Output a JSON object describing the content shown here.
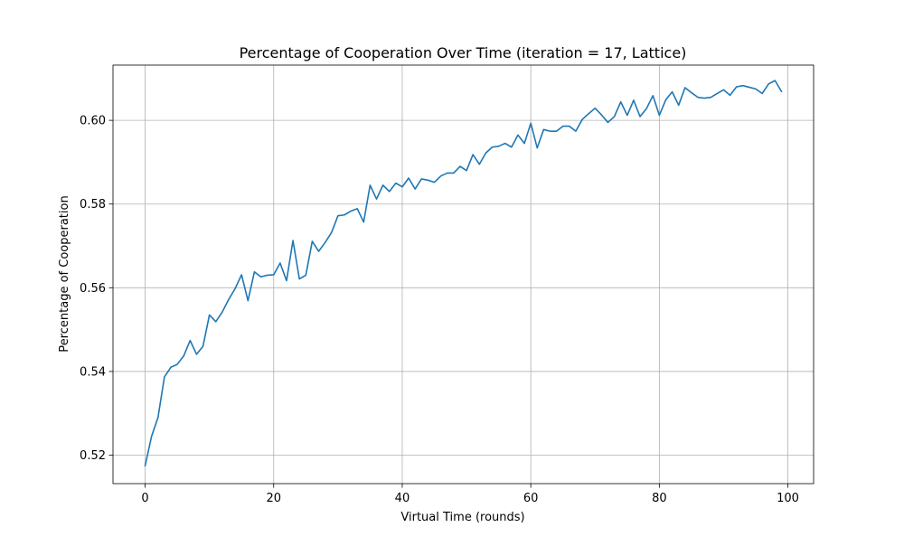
{
  "chart_data": {
    "type": "line",
    "title": "Percentage of Cooperation Over Time (iteration = 17, Lattice)",
    "xlabel": "Virtual Time (rounds)",
    "ylabel": "Percentage of Cooperation",
    "xlim": [
      -5,
      104
    ],
    "ylim": [
      0.5132,
      0.6132
    ],
    "xticks": [
      0,
      20,
      40,
      60,
      80,
      100
    ],
    "xtick_labels": [
      "0",
      "20",
      "40",
      "60",
      "80",
      "100"
    ],
    "yticks": [
      0.52,
      0.54,
      0.56,
      0.58,
      0.6
    ],
    "ytick_labels": [
      "0.52",
      "0.54",
      "0.56",
      "0.58",
      "0.60"
    ],
    "grid": true,
    "legend": "none",
    "series": [
      {
        "color": "#1f77b4",
        "x": [
          0,
          1,
          2,
          3,
          4,
          5,
          6,
          7,
          8,
          9,
          10,
          11,
          12,
          13,
          14,
          15,
          16,
          17,
          18,
          19,
          20,
          21,
          22,
          23,
          24,
          25,
          26,
          27,
          28,
          29,
          30,
          31,
          32,
          33,
          34,
          35,
          36,
          37,
          38,
          39,
          40,
          41,
          42,
          43,
          44,
          45,
          46,
          47,
          48,
          49,
          50,
          51,
          52,
          53,
          54,
          55,
          56,
          57,
          58,
          59,
          60,
          61,
          62,
          63,
          64,
          65,
          66,
          67,
          68,
          69,
          70,
          71,
          72,
          73,
          74,
          75,
          76,
          77,
          78,
          79,
          80,
          81,
          82,
          83,
          84,
          85,
          86,
          87,
          88,
          89,
          90,
          91,
          92,
          93,
          94,
          95,
          96,
          97,
          98,
          99
        ],
        "values": [
          0.5175,
          0.5245,
          0.529,
          0.5387,
          0.541,
          0.5417,
          0.5437,
          0.5474,
          0.5441,
          0.546,
          0.5535,
          0.5519,
          0.5542,
          0.5572,
          0.5598,
          0.5631,
          0.5569,
          0.5638,
          0.5626,
          0.563,
          0.5631,
          0.5659,
          0.5617,
          0.5713,
          0.5621,
          0.563,
          0.5711,
          0.5687,
          0.5708,
          0.5732,
          0.5772,
          0.5774,
          0.5783,
          0.5789,
          0.5757,
          0.5845,
          0.5812,
          0.5845,
          0.583,
          0.585,
          0.5841,
          0.5862,
          0.5836,
          0.586,
          0.5857,
          0.5852,
          0.5867,
          0.5874,
          0.5874,
          0.589,
          0.588,
          0.5918,
          0.5895,
          0.5922,
          0.5936,
          0.5938,
          0.5945,
          0.5936,
          0.5965,
          0.5945,
          0.5993,
          0.5934,
          0.5978,
          0.5974,
          0.5974,
          0.5986,
          0.5986,
          0.5974,
          0.6002,
          0.6016,
          0.6029,
          0.6013,
          0.5995,
          0.6009,
          0.6044,
          0.6012,
          0.6048,
          0.6009,
          0.6028,
          0.6059,
          0.6012,
          0.6049,
          0.6068,
          0.6036,
          0.6078,
          0.6066,
          0.6055,
          0.6053,
          0.6055,
          0.6064,
          0.6073,
          0.606,
          0.608,
          0.6083,
          0.6079,
          0.6075,
          0.6064,
          0.6087,
          0.6095,
          0.6069
        ]
      }
    ]
  }
}
